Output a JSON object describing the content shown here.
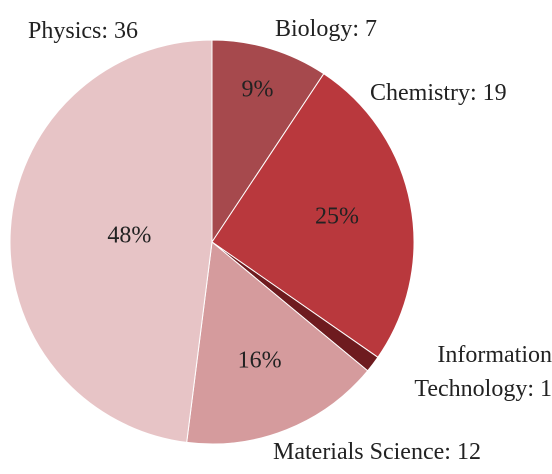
{
  "chart_data": {
    "type": "pie",
    "categories": [
      "Biology",
      "Chemistry",
      "Information Technology",
      "Materials Science",
      "Physics"
    ],
    "values": [
      7,
      19,
      1,
      12,
      36
    ],
    "value_labels": [
      "9%",
      "25%",
      null,
      "16%",
      "48%"
    ],
    "colors": [
      "#a6494d",
      "#b9383d",
      "#6e1b1f",
      "#d59b9d",
      "#e7c4c6"
    ]
  }
}
